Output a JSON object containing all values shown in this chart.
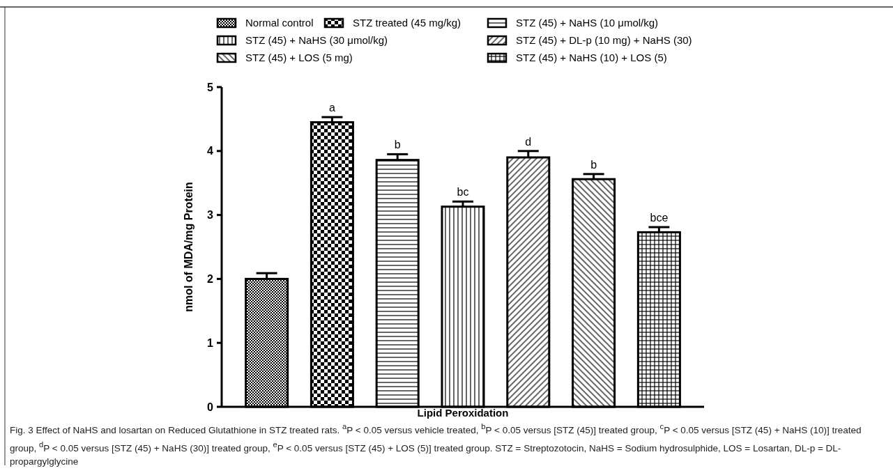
{
  "chart_data": {
    "type": "bar",
    "categories": [
      "Lipid Peroxidation"
    ],
    "ylabel": "nmol of MDA/mg Protein",
    "ylim": [
      0,
      5
    ],
    "yticks": [
      0,
      1,
      2,
      3,
      4,
      5
    ],
    "grid": false,
    "legend": "top",
    "series": [
      {
        "name": "Normal control",
        "color": "#000000",
        "values": [
          2.0
        ],
        "errors": [
          0.09
        ]
      },
      {
        "name": "STZ treated (45 mg/kg)",
        "color": "#000000",
        "values": [
          4.45
        ],
        "errors": [
          0.08
        ],
        "value_labels": [
          "a"
        ]
      },
      {
        "name": "STZ (45) + NaHS (10 μmol/kg)",
        "color": "#000000",
        "values": [
          3.86
        ],
        "errors": [
          0.09
        ],
        "value_labels": [
          "b"
        ]
      },
      {
        "name": "STZ (45) + NaHS (30 μmol/kg)",
        "color": "#000000",
        "values": [
          3.13
        ],
        "errors": [
          0.08
        ],
        "value_labels": [
          "bc"
        ]
      },
      {
        "name": "STZ (45) + DL-p (10 mg) + NaHS (30)",
        "color": "#000000",
        "values": [
          3.9
        ],
        "errors": [
          0.1
        ],
        "value_labels": [
          "d"
        ]
      },
      {
        "name": "STZ (45) + LOS (5 mg)",
        "color": "#000000",
        "values": [
          3.56
        ],
        "errors": [
          0.08
        ],
        "value_labels": [
          "b"
        ]
      },
      {
        "name": "STZ (45) + NaHS (10) + LOS (5)",
        "color": "#000000",
        "values": [
          2.73
        ],
        "errors": [
          0.08
        ],
        "value_labels": [
          "bce"
        ]
      }
    ],
    "annotations": [
      "Fig. 3 Effect of NaHS and losartan on Reduced Glutathione in STZ treated rats. $^{a}$P < 0.05 versus vehicle treated, $^{b}$P < 0.05 versus [STZ (45)] treated group, $^{c}$P < 0.05 versus [STZ (45) + NaHS (10)] treated group, $^{d}$P < 0.05 versus [STZ (45) + NaHS (30)] treated group, $^{e}$P < 0.05 versus [STZ (45) + LOS (5)] treated group. STZ = Streptozotocin, NaHS = Sodium hydrosulphide, LOS = Losartan, DL-p = DL-propargylglycine"
    ]
  }
}
